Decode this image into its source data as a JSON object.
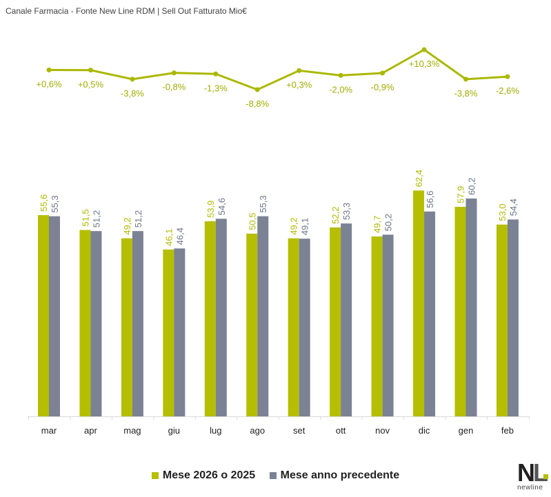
{
  "chart_data": {
    "type": "bar+line",
    "title": "Canale Farmacia - Fonte New Line RDM | Sell Out Fatturato Mio€",
    "categories": [
      "mar",
      "apr",
      "mag",
      "giu",
      "lug",
      "ago",
      "set",
      "ott",
      "nov",
      "dic",
      "gen",
      "feb"
    ],
    "series": [
      {
        "name": "Mese 2026 o 2025",
        "color": "#b5be00",
        "values": [
          55.6,
          51.5,
          49.2,
          46.1,
          53.9,
          50.5,
          49.2,
          52.2,
          49.7,
          62.4,
          57.9,
          53.0
        ],
        "labels": [
          "55,6",
          "51,5",
          "49,2",
          "46,1",
          "53,9",
          "50,5",
          "49,2",
          "52,2",
          "49,7",
          "62,4",
          "57,9",
          "53,0"
        ]
      },
      {
        "name": "Mese anno precedente",
        "color": "#7a8294",
        "values": [
          55.3,
          51.2,
          51.2,
          46.4,
          54.6,
          55.3,
          49.1,
          53.3,
          50.2,
          56.6,
          60.2,
          54.4
        ],
        "labels": [
          "55,3",
          "51,2",
          "51,2",
          "46,4",
          "54,6",
          "55,3",
          "49,1",
          "53,3",
          "50,2",
          "56,6",
          "60,2",
          "54,4"
        ]
      }
    ],
    "growth_line": {
      "color": "#aab800",
      "values": [
        0.6,
        0.5,
        -3.8,
        -0.8,
        -1.3,
        -8.8,
        0.3,
        -2.0,
        -0.9,
        10.3,
        -3.8,
        -2.6
      ],
      "labels": [
        "+0,6%",
        "+0,5%",
        "-3,8%",
        "-0,8%",
        "-1,3%",
        "-8,8%",
        "+0,3%",
        "-2,0%",
        "-0,9%",
        "+10,3%",
        "-3,8%",
        "-2,6%"
      ]
    },
    "legend_position": "bottom",
    "grid": false
  },
  "legend": {
    "items": [
      "Mese 2026 o 2025",
      "Mese anno precedente"
    ]
  },
  "logo": {
    "text": "NL",
    "word": "newline"
  }
}
